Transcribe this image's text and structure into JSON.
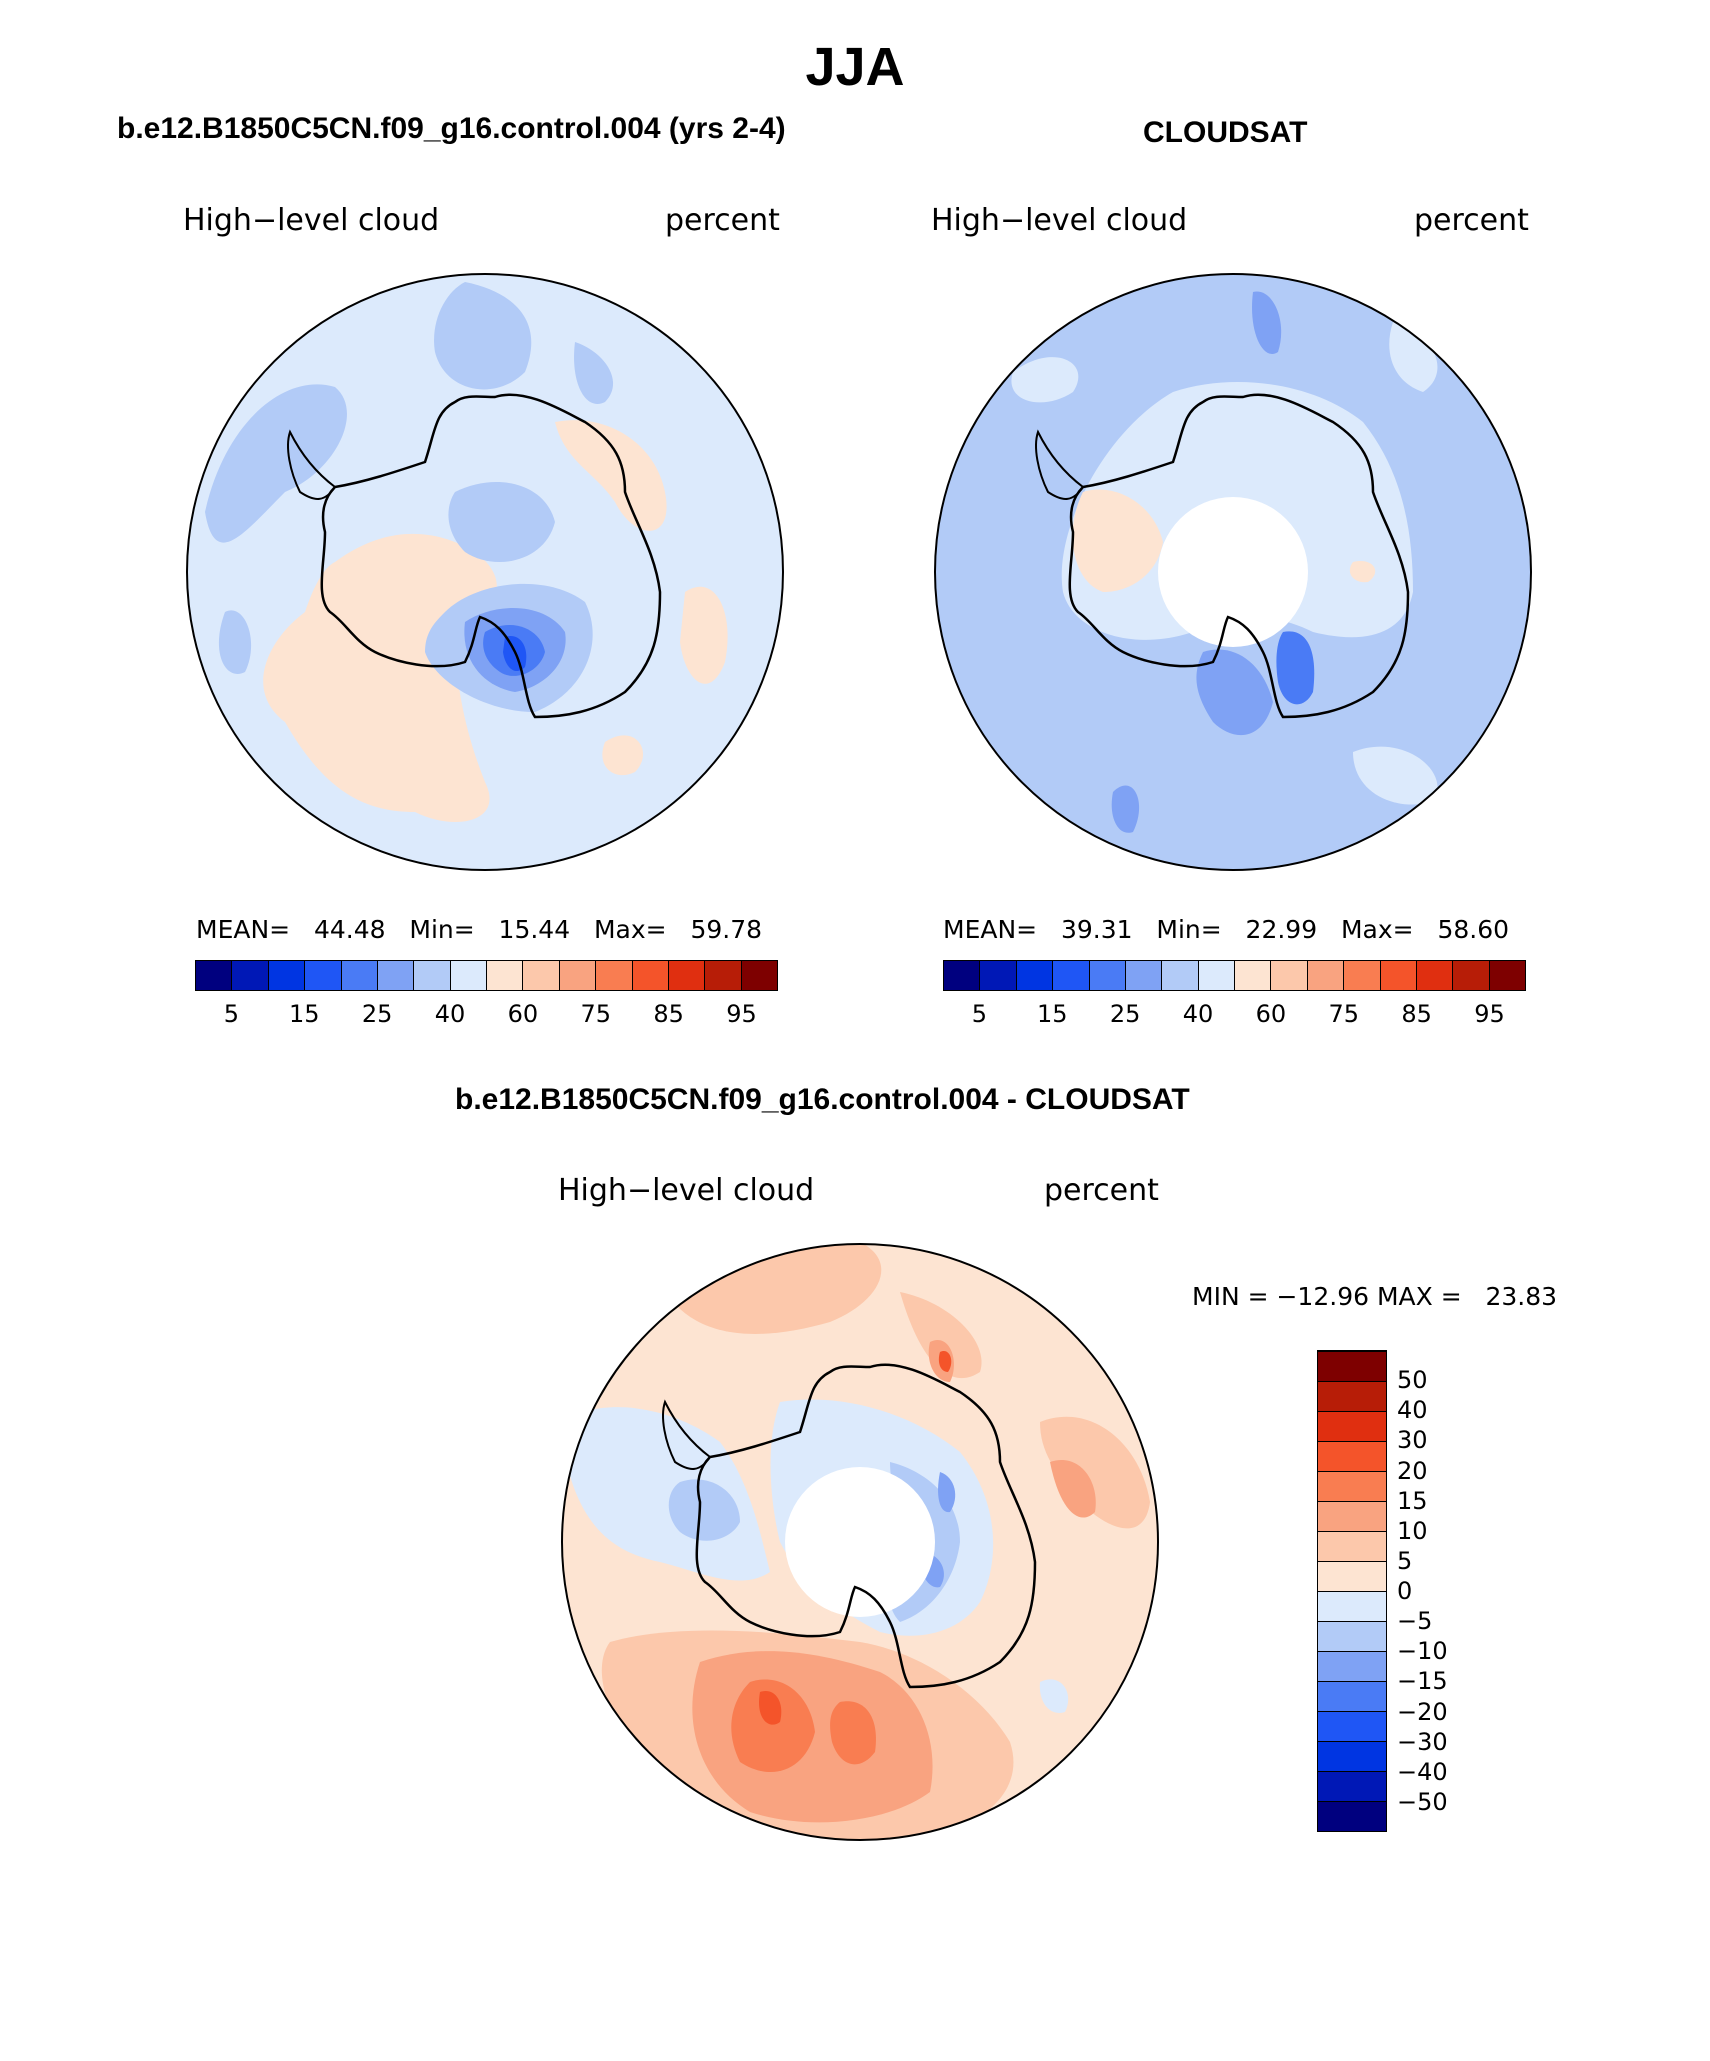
{
  "figure": {
    "title": "JJA",
    "panels": [
      {
        "title": "b.e12.B1850C5CN.f09_g16.control.004 (yrs 2-4)",
        "left_label": "High−level cloud",
        "right_label": "percent",
        "mean_label": "MEAN=",
        "mean": "44.48",
        "min_label": "Min=",
        "min": "15.44",
        "max_label": "Max=",
        "max": "59.78"
      },
      {
        "title": "CLOUDSAT",
        "left_label": "High−level cloud",
        "right_label": "percent",
        "mean_label": "MEAN=",
        "mean": "39.31",
        "min_label": "Min=",
        "min": "22.99",
        "max_label": "Max=",
        "max": "58.60"
      },
      {
        "title": "b.e12.B1850C5CN.f09_g16.control.004 - CLOUDSAT",
        "left_label": "High−level cloud",
        "right_label": "percent",
        "minmax_text": "MIN = −12.96 MAX =   23.83"
      }
    ],
    "abs_colorbar": {
      "colors": [
        "#00007f",
        "#0018b6",
        "#0035e2",
        "#1f56f5",
        "#4a7bf5",
        "#7fa2f4",
        "#b2cbf7",
        "#dceafc",
        "#fde4d2",
        "#fcc8ab",
        "#f9a380",
        "#f97d51",
        "#f4542a",
        "#e02f10",
        "#b71d07",
        "#7e0000"
      ],
      "tick_labels": [
        "5",
        "15",
        "25",
        "40",
        "60",
        "75",
        "85",
        "95"
      ],
      "tick_after_box": [
        1,
        3,
        5,
        7,
        9,
        11,
        13,
        15
      ]
    },
    "diff_colorbar": {
      "colors": [
        "#00007f",
        "#0018b6",
        "#0035e2",
        "#1f56f5",
        "#4a7bf5",
        "#7fa2f4",
        "#b2cbf7",
        "#dceafc",
        "#fde4d2",
        "#fcc8ab",
        "#f9a380",
        "#f97d51",
        "#f4542a",
        "#e02f10",
        "#b71d07",
        "#7e0000"
      ],
      "tick_labels": [
        "−50",
        "−40",
        "−30",
        "−20",
        "−15",
        "−10",
        "−5",
        "0",
        "5",
        "10",
        "15",
        "20",
        "30",
        "40",
        "50"
      ]
    },
    "map_palette": {
      "ocean_light": "#dceafc",
      "mid_blue": "#b2cbf7",
      "blue": "#7fa2f4",
      "deep_blue": "#4a7bf5",
      "strong_blue": "#1f56f5",
      "peach": "#fde4d2",
      "salmon": "#fcc8ab",
      "orange": "#f9a380",
      "red_orange": "#f97d51",
      "red": "#f4542a"
    }
  }
}
